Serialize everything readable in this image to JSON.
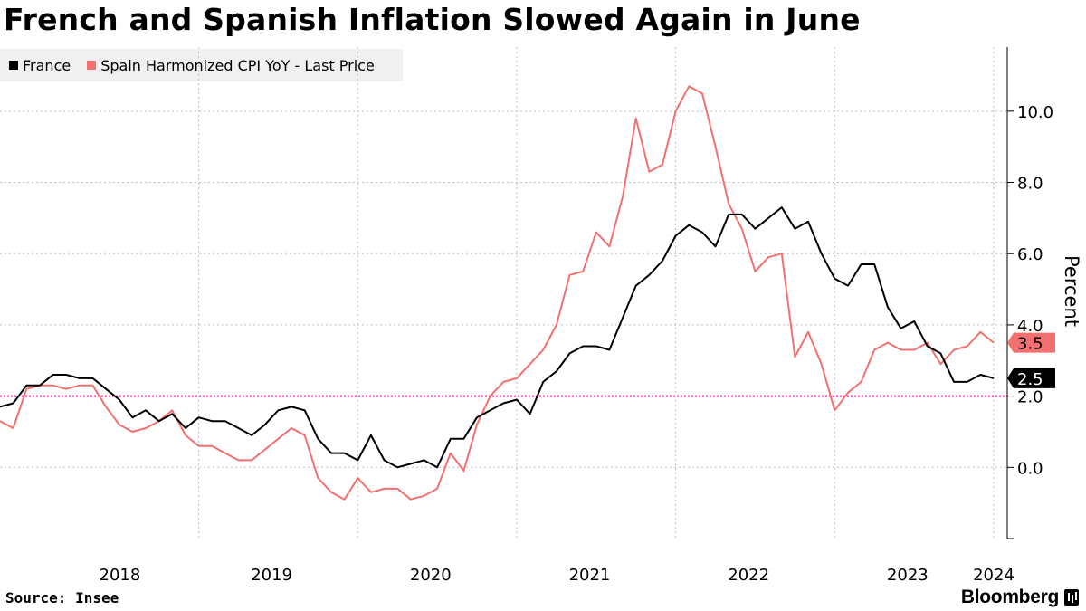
{
  "title": "French and Spanish Inflation Slowed Again in June",
  "source": "Source: Insee",
  "brand": "Bloomberg",
  "colors": {
    "france": "#000000",
    "spain": "#f2706f",
    "target": "#e6279b",
    "grid": "#bdbdbd"
  },
  "legend": [
    {
      "label": "France",
      "color": "#000000"
    },
    {
      "label": "Spain Harmonized CPI YoY - Last Price",
      "color": "#f2706f"
    }
  ],
  "chart_data": {
    "type": "line",
    "title": "French and Spanish Inflation Slowed Again in June",
    "xlabel": "",
    "ylabel": "Percent",
    "ylim": [
      -2.0,
      11.8
    ],
    "yticks": [
      0.0,
      2.0,
      4.0,
      6.0,
      8.0,
      10.0
    ],
    "ytick_labels": [
      "0.0",
      "2.0",
      "4.0",
      "6.0",
      "8.0",
      "10.0"
    ],
    "x_start": "2017-10",
    "x_end": "2024-06",
    "year_labels": [
      "2018",
      "2019",
      "2020",
      "2021",
      "2022",
      "2023",
      "2024"
    ],
    "reference_line": {
      "value": 2.0,
      "style": "dotted"
    },
    "last_values": {
      "spain": "3.5",
      "france": "2.5"
    },
    "series": [
      {
        "name": "France",
        "values": [
          1.7,
          1.8,
          2.3,
          2.3,
          2.6,
          2.6,
          2.5,
          2.5,
          2.2,
          1.9,
          1.4,
          1.6,
          1.3,
          1.5,
          1.1,
          1.4,
          1.3,
          1.3,
          1.1,
          0.9,
          1.2,
          1.6,
          1.7,
          1.6,
          0.8,
          0.4,
          0.4,
          0.2,
          0.9,
          0.2,
          0.0,
          0.1,
          0.2,
          0.0,
          0.8,
          0.8,
          1.4,
          1.6,
          1.8,
          1.9,
          1.5,
          2.4,
          2.7,
          3.2,
          3.4,
          3.4,
          3.3,
          4.2,
          5.1,
          5.4,
          5.8,
          6.5,
          6.8,
          6.6,
          6.2,
          7.1,
          7.1,
          6.7,
          7.0,
          7.3,
          6.7,
          6.9,
          6.0,
          5.3,
          5.1,
          5.7,
          5.7,
          4.5,
          3.9,
          4.1,
          3.4,
          3.2,
          2.4,
          2.4,
          2.6,
          2.5
        ]
      },
      {
        "name": "Spain Harmonized CPI YoY - Last Price",
        "values": [
          1.3,
          1.1,
          2.2,
          2.3,
          2.3,
          2.2,
          2.3,
          2.3,
          1.7,
          1.2,
          1.0,
          1.1,
          1.3,
          1.6,
          0.9,
          0.6,
          0.6,
          0.4,
          0.2,
          0.2,
          0.5,
          0.8,
          1.1,
          0.9,
          -0.3,
          -0.7,
          -0.9,
          -0.3,
          -0.7,
          -0.6,
          -0.6,
          -0.9,
          -0.8,
          -0.6,
          0.4,
          -0.1,
          1.2,
          2.0,
          2.4,
          2.5,
          2.9,
          3.3,
          4.0,
          5.4,
          5.5,
          6.6,
          6.2,
          7.6,
          9.8,
          8.3,
          8.5,
          10.0,
          10.7,
          10.5,
          9.0,
          7.4,
          6.7,
          5.5,
          5.9,
          6.0,
          3.1,
          3.8,
          2.9,
          1.6,
          2.1,
          2.4,
          3.3,
          3.5,
          3.3,
          3.3,
          3.5,
          2.9,
          3.3,
          3.4,
          3.8,
          3.5
        ]
      }
    ]
  }
}
